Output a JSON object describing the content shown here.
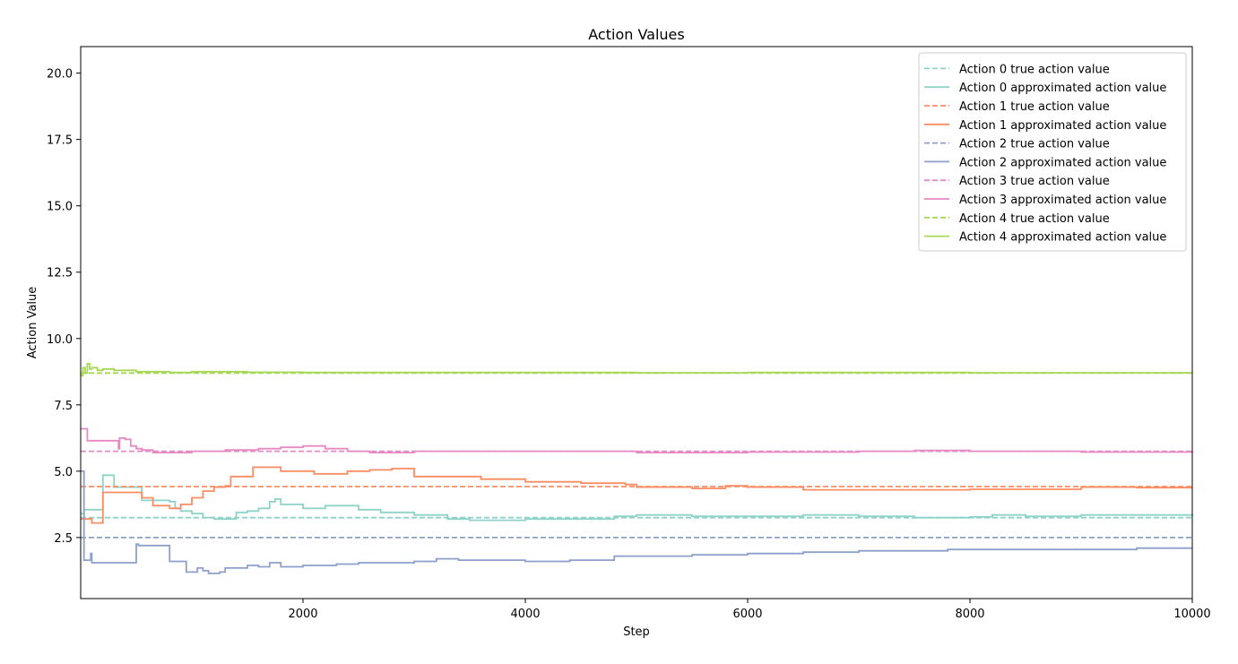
{
  "chart_data": {
    "type": "line",
    "title": "Action Values",
    "xlabel": "Step",
    "ylabel": "Action Value",
    "xlim": [
      0,
      10000
    ],
    "ylim": [
      0.2,
      21.0
    ],
    "x_ticks": [
      2000,
      4000,
      6000,
      8000,
      10000
    ],
    "x_tick_labels": [
      "2000",
      "4000",
      "6000",
      "8000",
      "10000"
    ],
    "y_ticks": [
      2.5,
      5.0,
      7.5,
      10.0,
      12.5,
      15.0,
      17.5,
      20.0
    ],
    "y_tick_labels": [
      "2.5",
      "5.0",
      "7.5",
      "10.0",
      "12.5",
      "15.0",
      "17.5",
      "20.0"
    ],
    "grid": false,
    "legend_position": "top-right",
    "series": [
      {
        "name": "Action 0 true action value",
        "color": "#8dd3c7",
        "style": "dashed",
        "x": [
          0,
          10000
        ],
        "y": [
          3.25,
          3.25
        ]
      },
      {
        "name": "Action 0 approximated action value",
        "color": "#8dd3c7",
        "style": "solid",
        "x": [
          0,
          30,
          60,
          100,
          150,
          200,
          300,
          400,
          500,
          550,
          650,
          800,
          850,
          900,
          1000,
          1100,
          1200,
          1400,
          1500,
          1600,
          1700,
          1750,
          1800,
          2000,
          2200,
          2500,
          2700,
          3000,
          3300,
          3500,
          4000,
          4500,
          4800,
          5000,
          5500,
          6000,
          6500,
          7000,
          7500,
          8000,
          8200,
          8500,
          9000,
          9500,
          10000
        ],
        "y": [
          3.4,
          3.55,
          3.55,
          3.55,
          3.55,
          4.85,
          4.4,
          4.4,
          4.4,
          3.9,
          3.9,
          3.85,
          3.6,
          3.5,
          3.4,
          3.25,
          3.2,
          3.45,
          3.5,
          3.6,
          3.85,
          3.95,
          3.75,
          3.6,
          3.7,
          3.55,
          3.45,
          3.35,
          3.2,
          3.15,
          3.2,
          3.2,
          3.3,
          3.35,
          3.3,
          3.3,
          3.35,
          3.3,
          3.25,
          3.28,
          3.35,
          3.3,
          3.35,
          3.35,
          3.4
        ]
      },
      {
        "name": "Action 1 true action value",
        "color": "#fc8d62",
        "style": "dashed",
        "x": [
          0,
          10000
        ],
        "y": [
          4.42,
          4.42
        ]
      },
      {
        "name": "Action 1 approximated action value",
        "color": "#fc8d62",
        "style": "solid",
        "x": [
          0,
          50,
          100,
          150,
          200,
          400,
          450,
          550,
          650,
          800,
          900,
          1000,
          1100,
          1200,
          1300,
          1350,
          1400,
          1550,
          1800,
          2100,
          2400,
          2600,
          2800,
          3000,
          3300,
          3600,
          4000,
          4500,
          4900,
          5000,
          5500,
          5800,
          6000,
          6500,
          7000,
          7500,
          8000,
          8500,
          9000,
          9500,
          10000
        ],
        "y": [
          3.2,
          3.2,
          3.05,
          3.05,
          4.2,
          4.2,
          4.2,
          4.0,
          3.7,
          3.6,
          3.75,
          4.0,
          4.25,
          4.4,
          4.45,
          4.8,
          4.8,
          5.15,
          5.0,
          4.9,
          5.0,
          5.05,
          5.1,
          4.8,
          4.8,
          4.7,
          4.6,
          4.55,
          4.5,
          4.4,
          4.35,
          4.45,
          4.4,
          4.3,
          4.3,
          4.3,
          4.32,
          4.32,
          4.4,
          4.38,
          4.38
        ]
      },
      {
        "name": "Action 2 true action value",
        "color": "#8da0cb",
        "style": "dashed",
        "x": [
          0,
          10000
        ],
        "y": [
          2.5,
          2.5
        ]
      },
      {
        "name": "Action 2 approximated action value",
        "color": "#8da0cb",
        "style": "solid",
        "x": [
          0,
          25,
          30,
          80,
          90,
          100,
          320,
          330,
          500,
          520,
          800,
          820,
          950,
          1050,
          1100,
          1150,
          1250,
          1300,
          1400,
          1500,
          1600,
          1700,
          1800,
          2000,
          2300,
          2500,
          2800,
          3000,
          3200,
          3400,
          3800,
          4000,
          4400,
          4800,
          5000,
          5500,
          6000,
          6500,
          7000,
          7500,
          7800,
          8000,
          8500,
          9000,
          9500,
          10000
        ],
        "y": [
          5.0,
          5.0,
          1.65,
          1.65,
          1.9,
          1.55,
          1.55,
          1.55,
          2.25,
          2.2,
          1.6,
          1.6,
          1.2,
          1.35,
          1.25,
          1.15,
          1.2,
          1.35,
          1.35,
          1.45,
          1.4,
          1.55,
          1.4,
          1.45,
          1.5,
          1.55,
          1.55,
          1.6,
          1.7,
          1.65,
          1.65,
          1.6,
          1.65,
          1.8,
          1.8,
          1.85,
          1.9,
          1.95,
          2.0,
          2.0,
          2.05,
          2.05,
          2.05,
          2.05,
          2.1,
          2.1
        ]
      },
      {
        "name": "Action 3 true action value",
        "color": "#e78ac3",
        "style": "dashed",
        "x": [
          0,
          10000
        ],
        "y": [
          5.75,
          5.75
        ]
      },
      {
        "name": "Action 3 approximated action value",
        "color": "#e78ac3",
        "style": "solid",
        "x": [
          0,
          50,
          60,
          300,
          340,
          350,
          400,
          450,
          500,
          550,
          650,
          800,
          1000,
          1200,
          1300,
          1450,
          1600,
          1800,
          2000,
          2200,
          2400,
          2600,
          3000,
          3500,
          4000,
          5000,
          6000,
          7000,
          7500,
          8000,
          9000,
          10000
        ],
        "y": [
          6.6,
          6.6,
          6.15,
          6.15,
          5.85,
          6.25,
          6.2,
          5.95,
          5.85,
          5.8,
          5.7,
          5.7,
          5.75,
          5.75,
          5.8,
          5.8,
          5.85,
          5.9,
          5.95,
          5.85,
          5.75,
          5.7,
          5.75,
          5.75,
          5.75,
          5.7,
          5.72,
          5.75,
          5.78,
          5.75,
          5.72,
          5.7
        ]
      },
      {
        "name": "Action 4 true action value",
        "color": "#a6d854",
        "style": "dashed",
        "x": [
          0,
          10000
        ],
        "y": [
          8.7,
          8.7
        ]
      },
      {
        "name": "Action 4 approximated action value",
        "color": "#a6d854",
        "style": "solid",
        "x": [
          0,
          20,
          40,
          60,
          80,
          100,
          150,
          200,
          300,
          500,
          800,
          1000,
          1500,
          2000,
          3000,
          4000,
          5000,
          6000,
          7000,
          8000,
          9000,
          10000
        ],
        "y": [
          8.6,
          8.9,
          8.7,
          9.05,
          8.85,
          8.9,
          8.8,
          8.85,
          8.8,
          8.75,
          8.72,
          8.75,
          8.73,
          8.72,
          8.72,
          8.72,
          8.71,
          8.72,
          8.72,
          8.71,
          8.71,
          8.71
        ]
      }
    ]
  }
}
